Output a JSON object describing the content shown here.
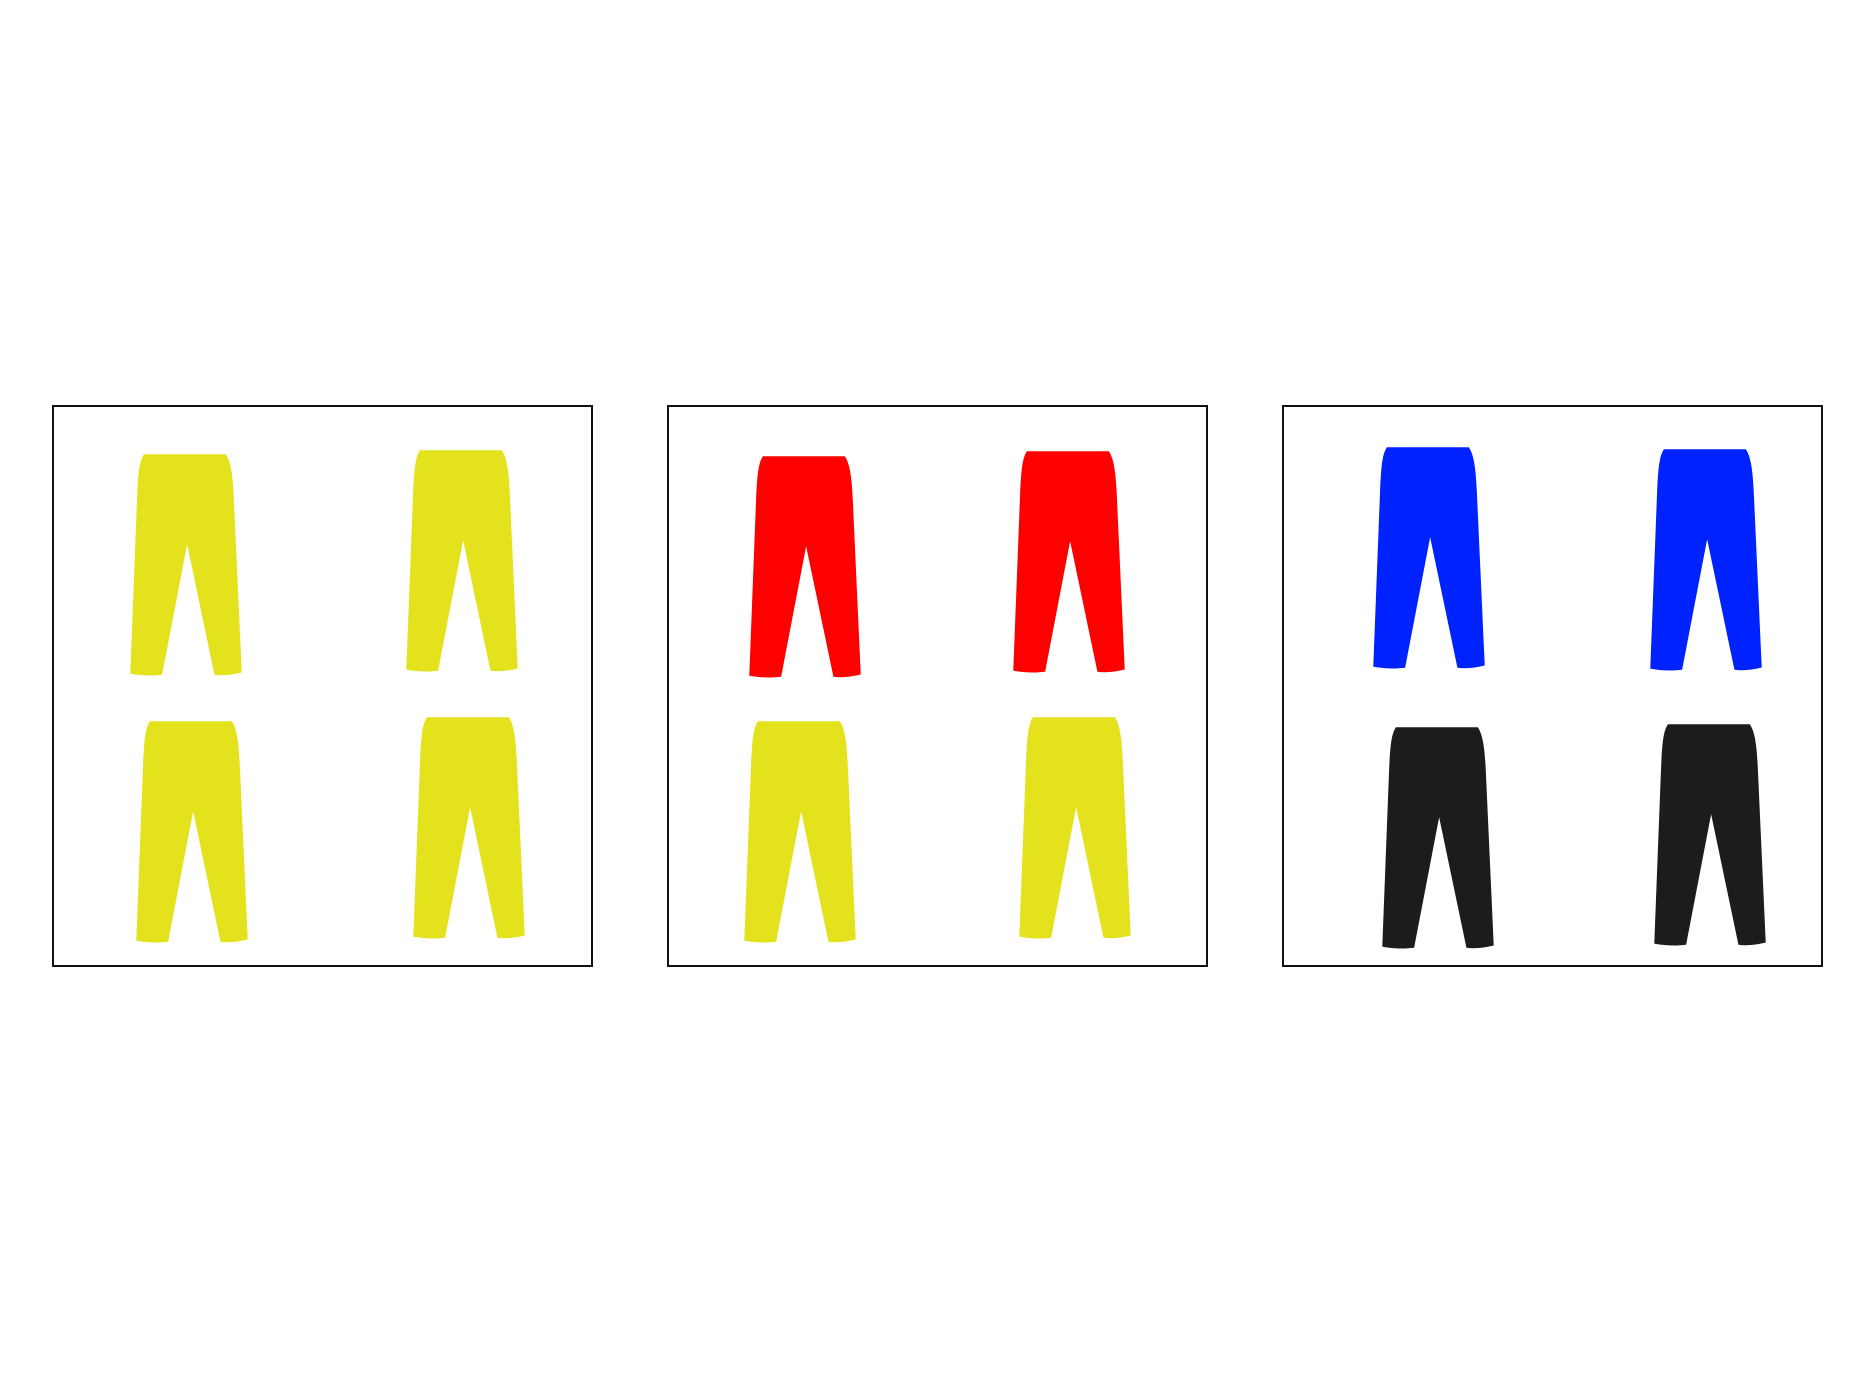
{
  "panels": [
    {
      "name": "panel-1",
      "garments": [
        {
          "type": "trousers",
          "color": "#e3e21c"
        },
        {
          "type": "trousers",
          "color": "#e3e21c"
        },
        {
          "type": "trousers",
          "color": "#e3e21c"
        },
        {
          "type": "trousers",
          "color": "#e3e21c"
        }
      ]
    },
    {
      "name": "panel-2",
      "garments": [
        {
          "type": "trousers",
          "color": "#ff0000"
        },
        {
          "type": "trousers",
          "color": "#ff0000"
        },
        {
          "type": "trousers",
          "color": "#e3e21c"
        },
        {
          "type": "trousers",
          "color": "#e3e21c"
        }
      ]
    },
    {
      "name": "panel-3",
      "garments": [
        {
          "type": "trousers",
          "color": "#0022ff"
        },
        {
          "type": "trousers",
          "color": "#0022ff"
        },
        {
          "type": "trousers",
          "color": "#1c1c1a"
        },
        {
          "type": "trousers",
          "color": "#1c1c1a"
        }
      ]
    }
  ],
  "colors": {
    "border": "#111111",
    "background": "#ffffff"
  }
}
